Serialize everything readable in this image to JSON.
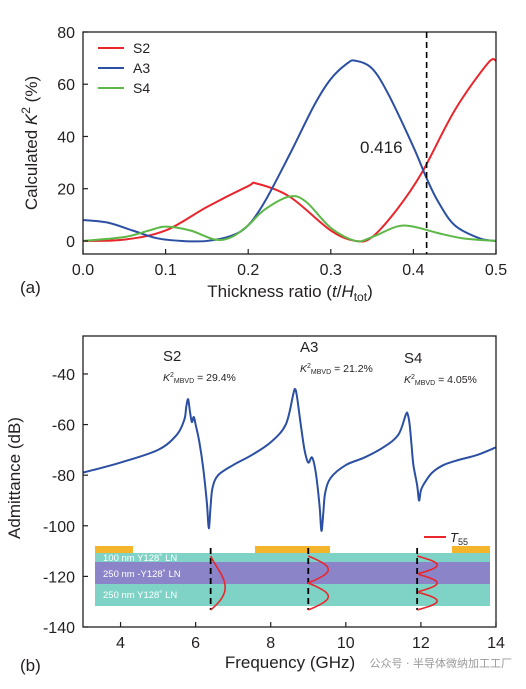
{
  "colors": {
    "S2": "#e8262c",
    "A3": "#2b4fa2",
    "S4": "#5db848",
    "marker": "#000000",
    "layer_top": "#7fd3c6",
    "layer_mid": "#8c84c8",
    "layer_bot": "#7fd3c6",
    "electrode": "#f5b52a",
    "T55": "#e8262c"
  },
  "chart_data": [
    {
      "panel_label": "(a)",
      "type": "line",
      "xlabel": {
        "main": "Thickness ratio (",
        "var": "t",
        "slash": "/",
        "var2": "H",
        "sub": "tot",
        "close": ")"
      },
      "ylabel": {
        "main": "Calculated ",
        "var": "K",
        "sup": "2",
        "unit": " (%)"
      },
      "xlim": [
        0.0,
        0.5
      ],
      "ylim": [
        -5,
        80
      ],
      "xticks": [
        "0.0",
        "0.1",
        "0.2",
        "0.3",
        "0.4",
        "0.5"
      ],
      "yticks": [
        "0",
        "20",
        "40",
        "60",
        "80"
      ],
      "legend_position": "top-left",
      "marker_line": {
        "x": 0.416,
        "label": "0.416",
        "style": "dashed"
      },
      "grid": false,
      "series": [
        {
          "name": "S2",
          "color_key": "S2",
          "x": [
            0.0,
            0.05,
            0.1,
            0.15,
            0.2,
            0.21,
            0.25,
            0.3,
            0.33,
            0.35,
            0.38,
            0.41,
            0.45,
            0.49,
            0.5
          ],
          "y": [
            0,
            0.5,
            4,
            13,
            21,
            22,
            17,
            4,
            0,
            1.5,
            12,
            26,
            50,
            68,
            69
          ]
        },
        {
          "name": "A3",
          "color_key": "A3",
          "x": [
            0.0,
            0.03,
            0.06,
            0.09,
            0.12,
            0.15,
            0.18,
            0.2,
            0.22,
            0.25,
            0.28,
            0.3,
            0.32,
            0.33,
            0.35,
            0.37,
            0.4,
            0.416,
            0.43,
            0.45,
            0.48,
            0.5
          ],
          "y": [
            8,
            7,
            4,
            1,
            0,
            0,
            2,
            6,
            15,
            33,
            52,
            62,
            68,
            69,
            66,
            56,
            36,
            24,
            15,
            6,
            1,
            0
          ]
        },
        {
          "name": "S4",
          "color_key": "S4",
          "x": [
            0.0,
            0.05,
            0.08,
            0.1,
            0.13,
            0.16,
            0.18,
            0.2,
            0.22,
            0.25,
            0.27,
            0.3,
            0.33,
            0.35,
            0.38,
            0.4,
            0.43,
            0.46,
            0.5
          ],
          "y": [
            0,
            1.5,
            4,
            5.5,
            4,
            0.5,
            1.5,
            6,
            12,
            17,
            15,
            5,
            0,
            1.5,
            5.5,
            5.5,
            3,
            1,
            0
          ]
        }
      ]
    },
    {
      "panel_label": "(b)",
      "type": "line",
      "xlabel": "Frequency (GHz)",
      "ylabel": "Admittance (dB)",
      "xlim": [
        3.0,
        14.0
      ],
      "ylim": [
        -140,
        -25
      ],
      "xticks": [
        "4",
        "6",
        "8",
        "10",
        "12",
        "14"
      ],
      "yticks": [
        "-40",
        "-60",
        "-80",
        "-100",
        "-120",
        "-140"
      ],
      "grid": false,
      "series": [
        {
          "name": "",
          "color_key": "A3",
          "x": [
            3.0,
            4.0,
            5.0,
            5.5,
            5.7,
            5.75,
            5.8,
            5.85,
            5.9,
            5.95,
            6.0,
            6.1,
            6.2,
            6.3,
            6.35,
            6.4,
            6.45,
            6.6,
            7.0,
            7.5,
            8.0,
            8.4,
            8.6,
            8.65,
            8.7,
            8.8,
            8.9,
            9.0,
            9.1,
            9.2,
            9.3,
            9.35,
            9.4,
            9.45,
            9.6,
            10.0,
            10.5,
            11.0,
            11.4,
            11.6,
            11.65,
            11.7,
            11.75,
            11.8,
            11.9,
            11.95,
            12.0,
            12.1,
            12.3,
            12.6,
            13.0,
            13.5,
            14.0
          ],
          "y": [
            -79,
            -75,
            -70,
            -64,
            -58,
            -53,
            -50,
            -55,
            -59,
            -57,
            -60,
            -67,
            -77,
            -91,
            -101,
            -92,
            -85,
            -80,
            -76,
            -72,
            -67,
            -60,
            -48,
            -46,
            -49,
            -60,
            -70,
            -75,
            -73,
            -79,
            -92,
            -102,
            -95,
            -87,
            -81,
            -76,
            -73,
            -69,
            -64,
            -56,
            -56,
            -60,
            -68,
            -76,
            -84,
            -90,
            -86,
            -83,
            -79,
            -76,
            -74,
            -72,
            -69
          ]
        }
      ],
      "annotations": [
        {
          "mode": "S2",
          "k_label": "K",
          "k_sup": "2",
          "k_sub": "MBVD",
          "value": " = 29.4%"
        },
        {
          "mode": "A3",
          "k_label": "K",
          "k_sup": "2",
          "k_sub": "MBVD",
          "value": " = 21.2%"
        },
        {
          "mode": "S4",
          "k_label": "K",
          "k_sup": "2",
          "k_sub": "MBVD",
          "value": " = 4.05%"
        }
      ],
      "inset": {
        "legend": {
          "var": "T",
          "sub": "55"
        },
        "layers": [
          "100 nm  Y128˚ LN",
          "250 nm -Y128˚ LN",
          "250 nm  Y128˚ LN"
        ],
        "marker_freqs": [
          6.4,
          9.0,
          11.9
        ]
      }
    }
  ],
  "watermark": "公众号 · 半导体微纳加工工厂"
}
